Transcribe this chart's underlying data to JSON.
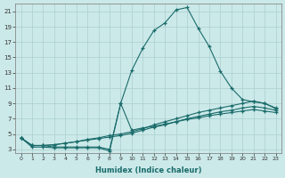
{
  "xlabel": "Humidex (Indice chaleur)",
  "xlim": [
    -0.5,
    23.5
  ],
  "ylim": [
    2.5,
    22
  ],
  "yticks": [
    3,
    5,
    7,
    9,
    11,
    13,
    15,
    17,
    19,
    21
  ],
  "xticks": [
    0,
    1,
    2,
    3,
    4,
    5,
    6,
    7,
    8,
    9,
    10,
    11,
    12,
    13,
    14,
    15,
    16,
    17,
    18,
    19,
    20,
    21,
    22,
    23
  ],
  "background_color": "#cce9e9",
  "grid_color": "#aacfcf",
  "line_color": "#1a6b6b",
  "curves": [
    {
      "x": [
        0,
        1,
        2,
        3,
        4,
        5,
        6,
        7,
        8,
        9,
        10,
        11,
        12,
        13,
        14,
        15,
        16,
        17,
        18,
        19,
        20,
        21,
        22,
        23
      ],
      "y": [
        4.5,
        3.3,
        3.3,
        3.2,
        3.2,
        3.2,
        3.2,
        3.2,
        2.8,
        9.0,
        13.3,
        16.2,
        18.5,
        19.5,
        21.2,
        21.5,
        18.8,
        16.4,
        13.2,
        11.0,
        9.5,
        9.2,
        9.0,
        8.3
      ]
    },
    {
      "x": [
        0,
        1,
        2,
        3,
        4,
        5,
        6,
        7,
        8,
        9,
        10,
        11,
        12,
        13,
        14,
        15,
        16,
        17,
        18,
        19,
        20,
        21,
        22,
        23
      ],
      "y": [
        4.5,
        3.5,
        3.5,
        3.6,
        3.8,
        4.0,
        4.3,
        4.5,
        4.8,
        5.0,
        5.3,
        5.7,
        6.2,
        6.6,
        7.0,
        7.4,
        7.8,
        8.1,
        8.4,
        8.7,
        9.0,
        9.3,
        9.0,
        8.4
      ]
    },
    {
      "x": [
        0,
        1,
        2,
        3,
        4,
        5,
        6,
        7,
        8,
        9,
        10,
        11,
        12,
        13,
        14,
        15,
        16,
        17,
        18,
        19,
        20,
        21,
        22,
        23
      ],
      "y": [
        4.5,
        3.5,
        3.5,
        3.6,
        3.8,
        4.0,
        4.2,
        4.4,
        4.6,
        4.8,
        5.1,
        5.5,
        5.9,
        6.2,
        6.6,
        7.0,
        7.3,
        7.6,
        7.9,
        8.1,
        8.4,
        8.6,
        8.4,
        8.1
      ]
    },
    {
      "x": [
        0,
        1,
        2,
        3,
        4,
        5,
        6,
        7,
        8,
        9,
        10,
        11,
        12,
        13,
        14,
        15,
        16,
        17,
        18,
        19,
        20,
        21,
        22,
        23
      ],
      "y": [
        4.5,
        3.5,
        3.5,
        3.3,
        3.3,
        3.3,
        3.3,
        3.3,
        3.0,
        9.0,
        5.5,
        5.8,
        6.0,
        6.3,
        6.6,
        6.9,
        7.1,
        7.4,
        7.6,
        7.8,
        8.0,
        8.2,
        8.0,
        7.8
      ]
    }
  ]
}
